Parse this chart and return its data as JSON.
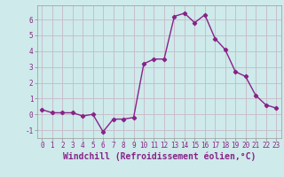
{
  "hours": [
    0,
    1,
    2,
    3,
    4,
    5,
    6,
    7,
    8,
    9,
    10,
    11,
    12,
    13,
    14,
    15,
    16,
    17,
    18,
    19,
    20,
    21,
    22,
    23
  ],
  "values": [
    0.3,
    0.1,
    0.1,
    0.1,
    -0.1,
    0.0,
    -1.1,
    -0.3,
    -0.3,
    -0.2,
    3.2,
    3.5,
    3.5,
    6.2,
    6.4,
    5.8,
    6.3,
    4.8,
    4.1,
    2.7,
    2.4,
    1.2,
    0.6,
    0.4
  ],
  "line_color": "#882288",
  "marker": "D",
  "markersize": 2.2,
  "linewidth": 1.0,
  "xlabel": "Windchill (Refroidissement éolien,°C)",
  "xlim": [
    -0.5,
    23.5
  ],
  "ylim": [
    -1.5,
    6.9
  ],
  "yticks": [
    -1,
    0,
    1,
    2,
    3,
    4,
    5,
    6
  ],
  "xticks": [
    0,
    1,
    2,
    3,
    4,
    5,
    6,
    7,
    8,
    9,
    10,
    11,
    12,
    13,
    14,
    15,
    16,
    17,
    18,
    19,
    20,
    21,
    22,
    23
  ],
  "background_color": "#ceeaea",
  "grid_color": "#b8d8d8",
  "tick_label_fontsize": 5.5,
  "xlabel_fontsize": 7.0
}
